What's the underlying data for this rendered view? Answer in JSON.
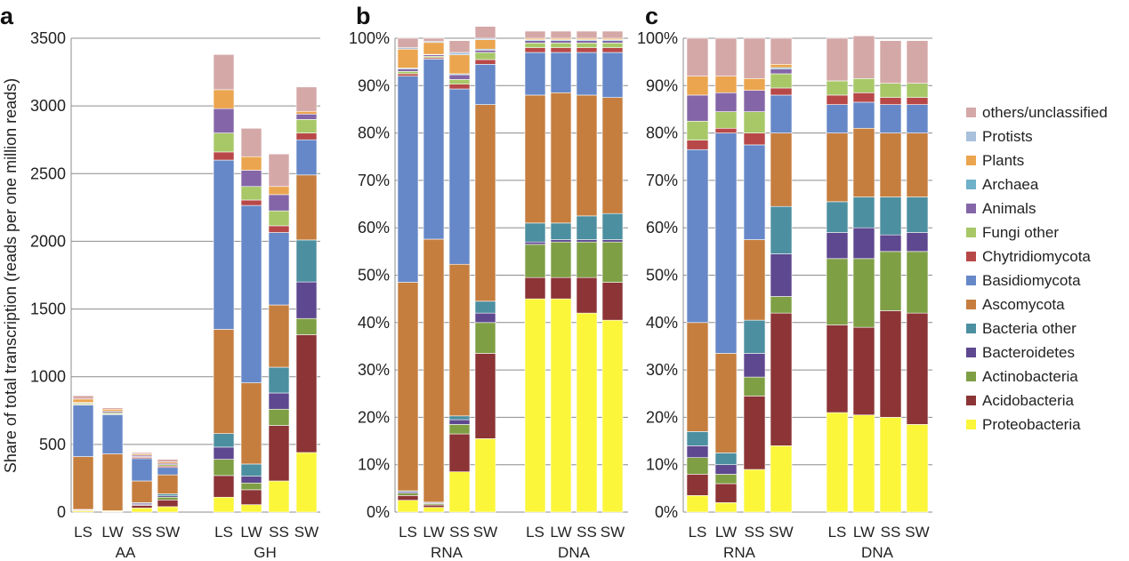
{
  "colors": {
    "others/unclassified": "#d5a8a8",
    "Protists": "#a8c0dc",
    "Plants": "#eba54f",
    "Archaea": "#6fb0ca",
    "Animals": "#8466a8",
    "Fungi other": "#a8c868",
    "Chytridiomycota": "#b84848",
    "Basidiomycota": "#6688c8",
    "Ascomycota": "#c67e3e",
    "Bacteria other": "#4c8fa0",
    "Bacteroidetes": "#5e4890",
    "Actinobacteria": "#7f9f45",
    "Acidobacteria": "#8c3436",
    "Proteobacteria": "#fbf63a"
  },
  "legend": [
    "others/unclassified",
    "Protists",
    "Plants",
    "Archaea",
    "Animals",
    "Fungi other",
    "Chytridiomycota",
    "Basidiomycota",
    "Ascomycota",
    "Bacteria other",
    "Bacteroidetes",
    "Actinobacteria",
    "Acidobacteria",
    "Proteobacteria"
  ],
  "chart_data": [
    {
      "panel": "a",
      "type": "bar",
      "stacked": true,
      "ylabel": "Share of total transcription (reads per one million reads)",
      "ylim": [
        0,
        3500
      ],
      "yticks": [
        "0",
        "500",
        "1000",
        "1500",
        "2000",
        "2500",
        "3000",
        "3500"
      ],
      "groups": [
        {
          "label": "AA",
          "categories": [
            "LS",
            "LW",
            "SS",
            "SW"
          ]
        },
        {
          "label": "GH",
          "categories": [
            "LS",
            "LW",
            "SS",
            "SW"
          ]
        }
      ],
      "series": [
        {
          "name": "Proteobacteria",
          "values": [
            10,
            5,
            30,
            40,
            110,
            55,
            230,
            440
          ]
        },
        {
          "name": "Acidobacteria",
          "values": [
            5,
            3,
            20,
            50,
            160,
            110,
            410,
            870
          ]
        },
        {
          "name": "Actinobacteria",
          "values": [
            3,
            1,
            5,
            20,
            120,
            50,
            120,
            120
          ]
        },
        {
          "name": "Bacteroidetes",
          "values": [
            2,
            1,
            10,
            10,
            90,
            50,
            120,
            270
          ]
        },
        {
          "name": "Bacteria other",
          "values": [
            0,
            0,
            5,
            15,
            100,
            90,
            190,
            310
          ]
        },
        {
          "name": "Ascomycota",
          "values": [
            390,
            420,
            160,
            140,
            770,
            600,
            460,
            480
          ]
        },
        {
          "name": "Basidiomycota",
          "values": [
            380,
            290,
            165,
            55,
            1250,
            1310,
            535,
            260
          ]
        },
        {
          "name": "Chytridiomycota",
          "values": [
            5,
            5,
            10,
            10,
            60,
            40,
            50,
            50
          ]
        },
        {
          "name": "Fungi other",
          "values": [
            10,
            10,
            5,
            10,
            140,
            100,
            110,
            100
          ]
        },
        {
          "name": "Animals",
          "values": [
            5,
            10,
            10,
            10,
            180,
            120,
            120,
            40
          ]
        },
        {
          "name": "Archaea",
          "values": [
            0,
            0,
            0,
            0,
            0,
            0,
            0,
            0
          ]
        },
        {
          "name": "Plants",
          "values": [
            25,
            15,
            10,
            10,
            140,
            100,
            60,
            20
          ]
        },
        {
          "name": "Protists",
          "values": [
            0,
            0,
            0,
            0,
            0,
            0,
            0,
            0
          ]
        },
        {
          "name": "others/unclassified",
          "values": [
            25,
            10,
            10,
            20,
            260,
            210,
            240,
            180
          ]
        }
      ]
    },
    {
      "panel": "b",
      "type": "bar",
      "stacked": true,
      "ylim": [
        0,
        100
      ],
      "yticks": [
        "0%",
        "10%",
        "20%",
        "30%",
        "40%",
        "50%",
        "60%",
        "70%",
        "80%",
        "90%",
        "100%"
      ],
      "groups": [
        {
          "label": "RNA",
          "categories": [
            "LS",
            "LW",
            "SS",
            "SW"
          ]
        },
        {
          "label": "DNA",
          "categories": [
            "LS",
            "LW",
            "SS",
            "SW"
          ]
        }
      ],
      "series": [
        {
          "name": "Proteobacteria",
          "values": [
            2.5,
            1,
            8.5,
            15.5,
            45,
            45,
            42,
            40.5
          ]
        },
        {
          "name": "Acidobacteria",
          "values": [
            1,
            0.5,
            8,
            18,
            4.5,
            4.5,
            7.5,
            8
          ]
        },
        {
          "name": "Actinobacteria",
          "values": [
            0.5,
            0.3,
            2,
            6.5,
            7,
            7.5,
            7.5,
            8.5
          ]
        },
        {
          "name": "Bacteroidetes",
          "values": [
            0.3,
            0.2,
            1,
            2,
            0.5,
            0.5,
            0.5,
            0.5
          ]
        },
        {
          "name": "Bacteria other",
          "values": [
            0.2,
            0.1,
            0.8,
            2.5,
            4,
            3.5,
            5,
            5.5
          ]
        },
        {
          "name": "Ascomycota",
          "values": [
            44,
            55.5,
            32,
            41.5,
            27,
            27.5,
            25.5,
            24.5
          ]
        },
        {
          "name": "Basidiomycota",
          "values": [
            43.5,
            38,
            37,
            8.5,
            9,
            8.5,
            9,
            9.5
          ]
        },
        {
          "name": "Chytridiomycota",
          "values": [
            0.5,
            0.3,
            1,
            1,
            1,
            1,
            1,
            1
          ]
        },
        {
          "name": "Fungi other",
          "values": [
            0.5,
            0.3,
            1,
            1.5,
            1,
            1,
            1,
            1
          ]
        },
        {
          "name": "Animals",
          "values": [
            0.5,
            0.3,
            1,
            0.5,
            0.5,
            0.5,
            0.5,
            0.5
          ]
        },
        {
          "name": "Archaea",
          "values": [
            0.2,
            0.1,
            0.2,
            0.2,
            0.2,
            0.2,
            0.2,
            0.2
          ]
        },
        {
          "name": "Plants",
          "values": [
            4,
            2.5,
            4,
            2,
            0.3,
            0.3,
            0.3,
            0.3
          ]
        },
        {
          "name": "Protists",
          "values": [
            0.3,
            0.2,
            0.5,
            0.3,
            0,
            0,
            0,
            0
          ]
        },
        {
          "name": "others/unclassified",
          "values": [
            2,
            0.7,
            2.5,
            2.5,
            1.5,
            1.5,
            1.5,
            1.5
          ]
        }
      ]
    },
    {
      "panel": "c",
      "type": "bar",
      "stacked": true,
      "ylim": [
        0,
        100
      ],
      "yticks": [
        "0%",
        "10%",
        "20%",
        "30%",
        "40%",
        "50%",
        "60%",
        "70%",
        "80%",
        "90%",
        "100%"
      ],
      "groups": [
        {
          "label": "RNA",
          "categories": [
            "LS",
            "LW",
            "SS",
            "SW"
          ]
        },
        {
          "label": "DNA",
          "categories": [
            "LS",
            "LW",
            "SS",
            "SW"
          ]
        }
      ],
      "series": [
        {
          "name": "Proteobacteria",
          "values": [
            3.5,
            2,
            9,
            14,
            21,
            20.5,
            20,
            18.5
          ]
        },
        {
          "name": "Acidobacteria",
          "values": [
            4.5,
            4,
            15.5,
            28,
            18.5,
            18.5,
            22.5,
            23.5
          ]
        },
        {
          "name": "Actinobacteria",
          "values": [
            3.5,
            2,
            4,
            3.5,
            14,
            14.5,
            12.5,
            13
          ]
        },
        {
          "name": "Bacteroidetes",
          "values": [
            2.5,
            2,
            5,
            9,
            5.5,
            6.5,
            3.5,
            4
          ]
        },
        {
          "name": "Bacteria other",
          "values": [
            3,
            2.5,
            7,
            10,
            6.5,
            6.5,
            8,
            7.5
          ]
        },
        {
          "name": "Ascomycota",
          "values": [
            23,
            21,
            17,
            15.5,
            14.5,
            14.5,
            13.5,
            13.5
          ]
        },
        {
          "name": "Basidiomycota",
          "values": [
            36.5,
            46.5,
            20,
            8,
            6,
            5.5,
            6,
            6
          ]
        },
        {
          "name": "Chytridiomycota",
          "values": [
            2,
            1,
            2.5,
            1.5,
            2,
            2,
            1.5,
            1.5
          ]
        },
        {
          "name": "Fungi other",
          "values": [
            4,
            3.5,
            4.5,
            3,
            3,
            3,
            3,
            3
          ]
        },
        {
          "name": "Animals",
          "values": [
            5.5,
            4,
            4.5,
            1,
            0,
            0,
            0,
            0
          ]
        },
        {
          "name": "Archaea",
          "values": [
            0,
            0,
            0,
            0.3,
            0,
            0,
            0,
            0
          ]
        },
        {
          "name": "Plants",
          "values": [
            4,
            3.5,
            2.5,
            0.7,
            0,
            0,
            0,
            0
          ]
        },
        {
          "name": "Protists",
          "values": [
            0,
            0,
            0,
            0,
            0,
            0,
            0,
            0
          ]
        },
        {
          "name": "others/unclassified",
          "values": [
            8,
            8,
            8.5,
            5.5,
            9,
            9,
            9,
            9
          ]
        }
      ]
    }
  ]
}
